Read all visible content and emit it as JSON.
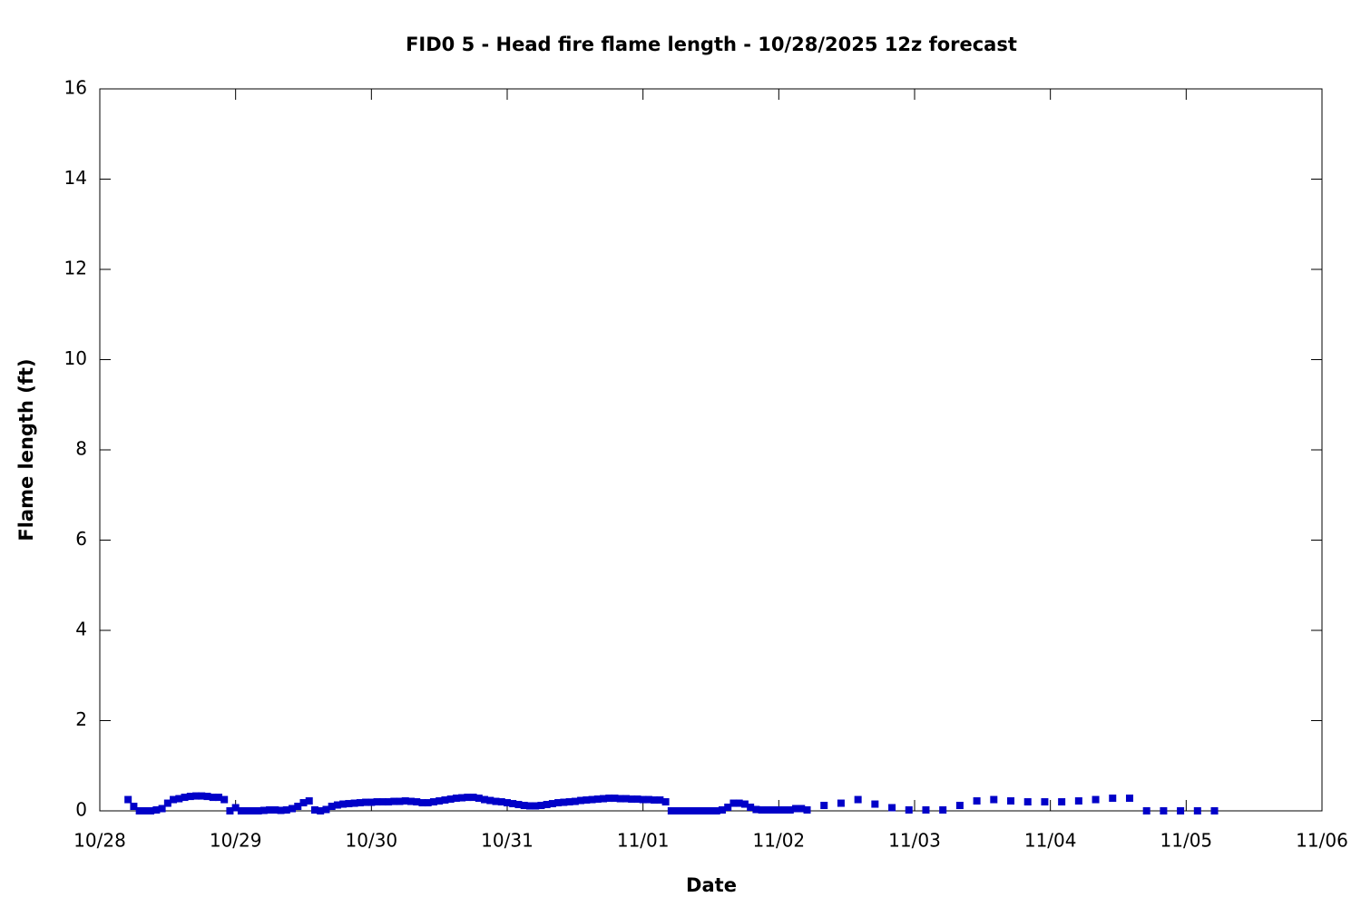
{
  "chart_data": {
    "type": "scatter",
    "title": "FID0 5 - Head fire flame length - 10/28/2025 12z forecast",
    "xlabel": "Date",
    "ylabel": "Flame length (ft)",
    "color": "#0000c8",
    "xlim": [
      "10/28",
      "11/06"
    ],
    "xticks": [
      "10/28",
      "10/29",
      "10/30",
      "10/31",
      "11/01",
      "11/02",
      "11/03",
      "11/04",
      "11/05",
      "11/06"
    ],
    "ylim": [
      0,
      16
    ],
    "yticks": [
      0,
      2,
      4,
      6,
      8,
      10,
      12,
      14,
      16
    ],
    "x": [
      "10/28 05:00",
      "10/28 06:00",
      "10/28 07:00",
      "10/28 08:00",
      "10/28 09:00",
      "10/28 10:00",
      "10/28 11:00",
      "10/28 12:00",
      "10/28 13:00",
      "10/28 14:00",
      "10/28 15:00",
      "10/28 16:00",
      "10/28 17:00",
      "10/28 18:00",
      "10/28 19:00",
      "10/28 20:00",
      "10/28 21:00",
      "10/28 22:00",
      "10/28 23:00",
      "10/29 00:00",
      "10/29 01:00",
      "10/29 02:00",
      "10/29 03:00",
      "10/29 04:00",
      "10/29 05:00",
      "10/29 06:00",
      "10/29 07:00",
      "10/29 08:00",
      "10/29 09:00",
      "10/29 10:00",
      "10/29 11:00",
      "10/29 12:00",
      "10/29 13:00",
      "10/29 14:00",
      "10/29 15:00",
      "10/29 16:00",
      "10/29 17:00",
      "10/29 18:00",
      "10/29 19:00",
      "10/29 20:00",
      "10/29 21:00",
      "10/29 22:00",
      "10/29 23:00",
      "10/30 00:00",
      "10/30 01:00",
      "10/30 02:00",
      "10/30 03:00",
      "10/30 04:00",
      "10/30 05:00",
      "10/30 06:00",
      "10/30 07:00",
      "10/30 08:00",
      "10/30 09:00",
      "10/30 10:00",
      "10/30 11:00",
      "10/30 12:00",
      "10/30 13:00",
      "10/30 14:00",
      "10/30 15:00",
      "10/30 16:00",
      "10/30 17:00",
      "10/30 18:00",
      "10/30 19:00",
      "10/30 20:00",
      "10/30 21:00",
      "10/30 22:00",
      "10/30 23:00",
      "10/31 00:00",
      "10/31 01:00",
      "10/31 02:00",
      "10/31 03:00",
      "10/31 04:00",
      "10/31 05:00",
      "10/31 06:00",
      "10/31 07:00",
      "10/31 08:00",
      "10/31 09:00",
      "10/31 10:00",
      "10/31 11:00",
      "10/31 12:00",
      "10/31 13:00",
      "10/31 14:00",
      "10/31 15:00",
      "10/31 16:00",
      "10/31 17:00",
      "10/31 18:00",
      "10/31 19:00",
      "10/31 20:00",
      "10/31 21:00",
      "10/31 22:00",
      "10/31 23:00",
      "11/01 00:00",
      "11/01 01:00",
      "11/01 02:00",
      "11/01 03:00",
      "11/01 04:00",
      "11/01 05:00",
      "11/01 06:00",
      "11/01 07:00",
      "11/01 08:00",
      "11/01 09:00",
      "11/01 10:00",
      "11/01 11:00",
      "11/01 12:00",
      "11/01 13:00",
      "11/01 14:00",
      "11/01 15:00",
      "11/01 16:00",
      "11/01 17:00",
      "11/01 18:00",
      "11/01 19:00",
      "11/01 20:00",
      "11/01 21:00",
      "11/01 22:00",
      "11/01 23:00",
      "11/02 00:00",
      "11/02 01:00",
      "11/02 02:00",
      "11/02 03:00",
      "11/02 04:00",
      "11/02 05:00",
      "11/02 08:00",
      "11/02 11:00",
      "11/02 14:00",
      "11/02 17:00",
      "11/02 20:00",
      "11/02 23:00",
      "11/03 02:00",
      "11/03 05:00",
      "11/03 08:00",
      "11/03 11:00",
      "11/03 14:00",
      "11/03 17:00",
      "11/03 20:00",
      "11/03 23:00",
      "11/04 02:00",
      "11/04 05:00",
      "11/04 08:00",
      "11/04 11:00",
      "11/04 14:00",
      "11/04 17:00",
      "11/04 20:00",
      "11/04 23:00",
      "11/05 02:00",
      "11/05 05:00"
    ],
    "values": [
      0.25,
      0.1,
      0,
      0,
      0,
      0.02,
      0.05,
      0.17,
      0.25,
      0.27,
      0.3,
      0.32,
      0.33,
      0.33,
      0.32,
      0.3,
      0.3,
      0.25,
      0,
      0.07,
      0,
      0,
      0,
      0,
      0.01,
      0.02,
      0.02,
      0.01,
      0.02,
      0.05,
      0.1,
      0.18,
      0.22,
      0.02,
      0,
      0.03,
      0.1,
      0.13,
      0.15,
      0.16,
      0.17,
      0.18,
      0.19,
      0.19,
      0.2,
      0.2,
      0.2,
      0.21,
      0.21,
      0.22,
      0.21,
      0.2,
      0.18,
      0.18,
      0.2,
      0.22,
      0.24,
      0.26,
      0.28,
      0.29,
      0.3,
      0.3,
      0.28,
      0.25,
      0.23,
      0.21,
      0.2,
      0.18,
      0.16,
      0.14,
      0.12,
      0.11,
      0.11,
      0.12,
      0.14,
      0.16,
      0.18,
      0.19,
      0.2,
      0.21,
      0.23,
      0.24,
      0.25,
      0.26,
      0.27,
      0.28,
      0.28,
      0.27,
      0.27,
      0.26,
      0.26,
      0.25,
      0.25,
      0.24,
      0.24,
      0.2,
      0,
      0,
      0,
      0,
      0,
      0,
      0,
      0,
      0,
      0.02,
      0.08,
      0.17,
      0.17,
      0.15,
      0.08,
      0.03,
      0.02,
      0.02,
      0.02,
      0.02,
      0.02,
      0.02,
      0.05,
      0.05,
      0.02,
      0.12,
      0.17,
      0.25,
      0.15,
      0.07,
      0.02,
      0.02,
      0.02,
      0.12,
      0.22,
      0.25,
      0.22,
      0.2,
      0.2,
      0.2,
      0.22,
      0.25,
      0.28,
      0.28,
      0,
      0,
      0,
      0,
      0
    ]
  }
}
